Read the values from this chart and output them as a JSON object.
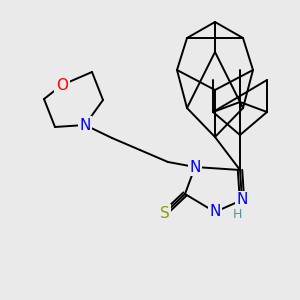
{
  "background_color": "#eaeaea",
  "bond_color": "#000000",
  "atom_colors": {
    "N": "#0000ff",
    "O": "#ff0000",
    "S": "#999900",
    "H": "#4d9999",
    "C": "#000000"
  },
  "font_size_atoms": 11,
  "font_size_h": 9,
  "line_width": 1.4,
  "figsize": [
    3.0,
    3.0
  ],
  "dpi": 100
}
